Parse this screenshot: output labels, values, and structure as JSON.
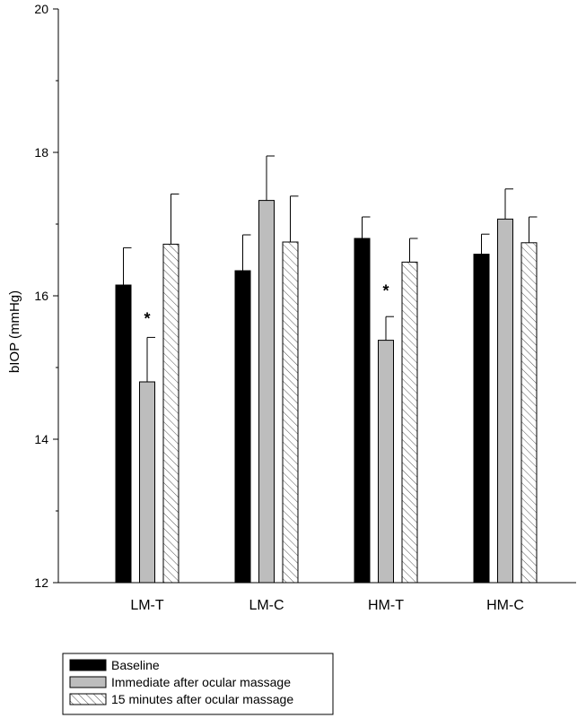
{
  "chart_data": {
    "type": "bar",
    "title": "",
    "xlabel": "",
    "ylabel": "bIOP (mmHg)",
    "ylim": [
      12,
      20
    ],
    "yticks": [
      12,
      14,
      16,
      18,
      20
    ],
    "ytick_labels": [
      "12",
      "14",
      "16",
      "18",
      "20"
    ],
    "minor_ticks_per_major": 1,
    "categories": [
      "LM-T",
      "LM-C",
      "HM-T",
      "HM-C"
    ],
    "series": [
      {
        "name": "Baseline",
        "values": [
          16.15,
          16.35,
          16.8,
          16.58
        ],
        "errors": [
          0.52,
          0.5,
          0.3,
          0.28
        ],
        "fill": "#000000",
        "pattern": "solid"
      },
      {
        "name": "Immediate after ocular massage",
        "values": [
          14.8,
          17.33,
          15.38,
          17.07
        ],
        "errors": [
          0.62,
          0.62,
          0.33,
          0.42
        ],
        "fill": "#bdbdbd",
        "pattern": "solid"
      },
      {
        "name": "15 minutes after ocular massage",
        "values": [
          16.72,
          16.75,
          16.47,
          16.74
        ],
        "errors": [
          0.7,
          0.64,
          0.33,
          0.36
        ],
        "fill": "#ffffff",
        "pattern": "hatch"
      }
    ],
    "annotations": [
      {
        "text": "*",
        "category": "LM-T",
        "series": 1,
        "y": 15.73
      },
      {
        "text": "*",
        "category": "HM-T",
        "series": 1,
        "y": 16.12
      }
    ],
    "legend_placement": "bottom-left, below plot",
    "grid": false
  }
}
